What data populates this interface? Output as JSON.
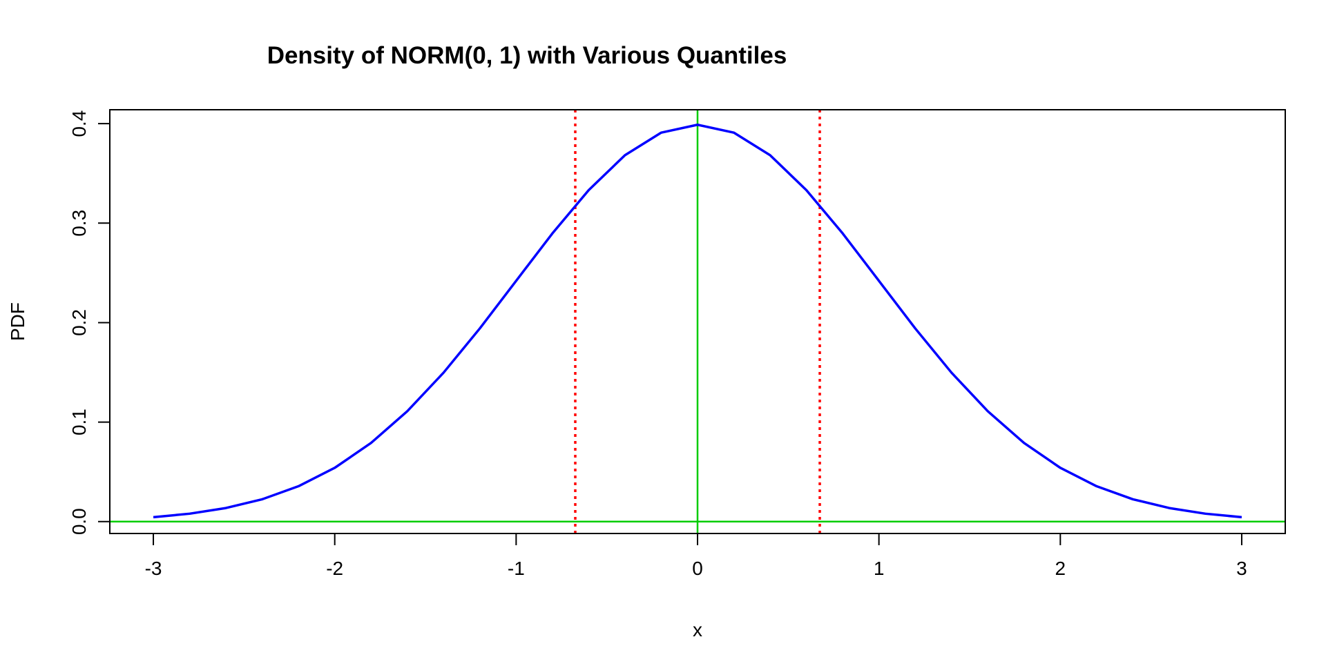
{
  "chart_data": {
    "type": "line",
    "title": "Density of NORM(0, 1) with Various Quantiles",
    "xlabel": "x",
    "ylabel": "PDF",
    "xlim": [
      -3.24,
      3.24
    ],
    "ylim": [
      -0.012,
      0.414
    ],
    "xticks": [
      -3,
      -2,
      -1,
      0,
      1,
      2,
      3
    ],
    "xtick_labels": [
      "-3",
      "-2",
      "-1",
      "0",
      "1",
      "2",
      "3"
    ],
    "yticks": [
      0.0,
      0.1,
      0.2,
      0.3,
      0.4
    ],
    "ytick_labels": [
      "0.0",
      "0.1",
      "0.2",
      "0.3",
      "0.4"
    ],
    "grid": false,
    "legend": "none",
    "series": [
      {
        "x": [
          -3.0,
          -2.8,
          -2.6,
          -2.4,
          -2.2,
          -2.0,
          -1.8,
          -1.6,
          -1.4,
          -1.2,
          -1.0,
          -0.8,
          -0.6,
          -0.4,
          -0.2,
          0.0,
          0.2,
          0.4,
          0.6,
          0.8,
          1.0,
          1.2,
          1.4,
          1.6,
          1.8,
          2.0,
          2.2,
          2.4,
          2.6,
          2.8,
          3.0
        ],
        "y": [
          0.0044,
          0.0079,
          0.0136,
          0.0224,
          0.0355,
          0.054,
          0.079,
          0.1109,
          0.1497,
          0.1942,
          0.242,
          0.2897,
          0.3332,
          0.3683,
          0.391,
          0.3989,
          0.391,
          0.3683,
          0.3332,
          0.2897,
          0.242,
          0.1942,
          0.1497,
          0.1109,
          0.079,
          0.054,
          0.0355,
          0.0224,
          0.0136,
          0.0079,
          0.0044
        ],
        "color": "#0000FF"
      }
    ],
    "vlines": [
      {
        "x": -0.674,
        "color": "#FF0000",
        "style": "dotted"
      },
      {
        "x": 0.0,
        "color": "#00CC00",
        "style": "solid"
      },
      {
        "x": 0.674,
        "color": "#FF0000",
        "style": "dotted"
      }
    ],
    "hlines": [
      {
        "y": 0.0,
        "color": "#00CC00",
        "style": "solid"
      }
    ]
  }
}
